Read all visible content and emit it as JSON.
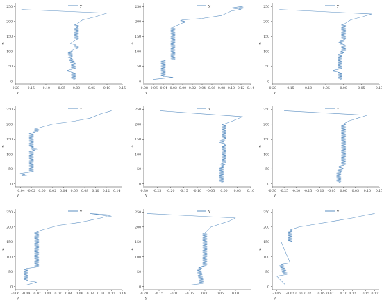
{
  "colors": {
    "line": "#5b8fc2",
    "axis": "#333333"
  },
  "chart_data": [
    {
      "type": "line",
      "xlabel": "y",
      "ylabel": "z",
      "xlim": [
        -0.2,
        0.15
      ],
      "ylim": [
        -10,
        260
      ],
      "xticks": [
        "-0.20",
        "-0.15",
        "-0.10",
        "-0.05",
        "0.00",
        "0.05",
        "0.10",
        "0.15"
      ],
      "yticks": [
        "0",
        "50",
        "100",
        "150",
        "200",
        "250"
      ],
      "legend": "y",
      "series": [
        {
          "name": "y",
          "x": [
            -0.01,
            -0.01,
            -0.03,
            -0.01,
            -0.01,
            -0.02,
            -0.02,
            -0.02,
            0.0,
            0.0,
            -0.02,
            0.0,
            0.0,
            0.0,
            0.02,
            0.06,
            0.1,
            -0.18
          ],
          "y": [
            5,
            30,
            35,
            40,
            60,
            75,
            80,
            100,
            110,
            120,
            125,
            140,
            180,
            190,
            205,
            215,
            228,
            240
          ]
        }
      ]
    },
    {
      "type": "line",
      "xlabel": "y",
      "ylabel": "z",
      "xlim": [
        -0.08,
        0.14
      ],
      "ylim": [
        -10,
        260
      ],
      "xticks": [
        "-0.08",
        "-0.06",
        "-0.04",
        "-0.02",
        "0.00",
        "0.02",
        "0.04",
        "0.06",
        "0.08",
        "0.10",
        "0.12",
        "0.14"
      ],
      "yticks": [
        "0",
        "50",
        "100",
        "150",
        "200",
        "250"
      ],
      "legend": "y",
      "series": [
        {
          "name": "y",
          "x": [
            -0.06,
            -0.02,
            -0.04,
            -0.04,
            -0.02,
            -0.02,
            0.0,
            0.0,
            0.04,
            0.08,
            0.1,
            0.12,
            0.1,
            0.12,
            0.12
          ],
          "y": [
            5,
            12,
            15,
            70,
            70,
            180,
            195,
            205,
            210,
            220,
            235,
            240,
            245,
            250,
            240
          ]
        }
      ]
    },
    {
      "type": "line",
      "xlabel": "y",
      "ylabel": "z",
      "xlim": [
        -0.2,
        0.1
      ],
      "ylim": [
        -10,
        260
      ],
      "xticks": [
        "-0.20",
        "-0.15",
        "-0.10",
        "-0.05",
        "0.00",
        "0.05",
        "0.10"
      ],
      "yticks": [
        "0",
        "50",
        "100",
        "150",
        "200",
        "250"
      ],
      "legend": "y",
      "series": [
        {
          "name": "y",
          "x": [
            -0.01,
            -0.01,
            -0.03,
            -0.01,
            -0.01,
            0.0,
            0.0,
            -0.01,
            0.0,
            0.0,
            0.02,
            0.05,
            0.08,
            -0.18
          ],
          "y": [
            5,
            30,
            35,
            40,
            90,
            100,
            120,
            125,
            140,
            190,
            205,
            215,
            225,
            240
          ]
        }
      ]
    },
    {
      "type": "line",
      "xlabel": "y",
      "ylabel": "z",
      "xlim": [
        -0.05,
        0.15
      ],
      "ylim": [
        -10,
        260
      ],
      "xticks": [
        "-0.04",
        "-0.02",
        "0.00",
        "0.02",
        "0.04",
        "0.06",
        "0.08",
        "0.10",
        "0.12",
        "0.14"
      ],
      "yticks": [
        "0",
        "50",
        "100",
        "150",
        "200",
        "250"
      ],
      "legend": "y",
      "series": [
        {
          "name": "y",
          "x": [
            -0.03,
            -0.04,
            -0.02,
            -0.02,
            -0.01,
            -0.02,
            -0.02,
            -0.01,
            -0.01,
            0.02,
            0.06,
            0.09,
            0.11,
            0.13
          ],
          "y": [
            25,
            35,
            40,
            110,
            118,
            120,
            170,
            175,
            185,
            200,
            210,
            220,
            235,
            245
          ]
        }
      ]
    },
    {
      "type": "line",
      "xlabel": "y",
      "ylabel": "z",
      "xlim": [
        -0.3,
        0.1
      ],
      "ylim": [
        -10,
        260
      ],
      "xticks": [
        "-0.30",
        "-0.25",
        "-0.20",
        "-0.15",
        "-0.10",
        "-0.05",
        "0.00",
        "0.05",
        "0.10"
      ],
      "yticks": [
        "0",
        "50",
        "100",
        "150",
        "200",
        "250"
      ],
      "legend": "y",
      "series": [
        {
          "name": "y",
          "x": [
            -0.01,
            -0.01,
            0.0,
            0.0,
            -0.01,
            0.0,
            0.0,
            0.03,
            0.07,
            -0.24
          ],
          "y": [
            5,
            60,
            70,
            130,
            140,
            150,
            200,
            210,
            225,
            245
          ]
        }
      ]
    },
    {
      "type": "line",
      "xlabel": "y",
      "ylabel": "z",
      "xlim": [
        -0.3,
        0.15
      ],
      "ylim": [
        -10,
        260
      ],
      "xticks": [
        "-0.30",
        "-0.25",
        "-0.20",
        "-0.15",
        "-0.10",
        "-0.05",
        "0.00",
        "0.05",
        "0.10",
        "0.15"
      ],
      "yticks": [
        "0",
        "50",
        "100",
        "150",
        "200",
        "250"
      ],
      "legend": "y",
      "series": [
        {
          "name": "y",
          "x": [
            -0.02,
            -0.02,
            -0.01,
            -0.01,
            0.0,
            0.0,
            0.02,
            0.06,
            0.1,
            -0.25
          ],
          "y": [
            5,
            40,
            50,
            60,
            65,
            200,
            210,
            220,
            230,
            245
          ]
        }
      ]
    },
    {
      "type": "line",
      "xlabel": "y",
      "ylabel": "z",
      "xlim": [
        -0.06,
        0.14
      ],
      "ylim": [
        -10,
        260
      ],
      "xticks": [
        "-0.06",
        "-0.04",
        "-0.02",
        "0.00",
        "0.02",
        "0.04",
        "0.06",
        "0.08",
        "0.10",
        "0.12",
        "0.14"
      ],
      "yticks": [
        "0",
        "50",
        "100",
        "150",
        "200",
        "250"
      ],
      "legend": "y",
      "series": [
        {
          "name": "y",
          "x": [
            -0.04,
            -0.02,
            -0.04,
            -0.04,
            -0.02,
            -0.02,
            0.02,
            0.06,
            0.1,
            0.12,
            0.08,
            0.12
          ],
          "y": [
            5,
            15,
            20,
            60,
            65,
            185,
            205,
            215,
            230,
            240,
            245,
            235
          ]
        }
      ]
    },
    {
      "type": "line",
      "xlabel": "y",
      "ylabel": "z",
      "xlim": [
        -0.2,
        0.15
      ],
      "ylim": [
        -10,
        260
      ],
      "xticks": [
        "-0.20",
        "-0.15",
        "-0.10",
        "-0.05",
        "0.00",
        "0.05",
        "0.10"
      ],
      "yticks": [
        "0",
        "50",
        "100",
        "150",
        "200",
        "250"
      ],
      "legend": "y",
      "series": [
        {
          "name": "y",
          "x": [
            -0.05,
            -0.01,
            -0.02,
            -0.01,
            0.0,
            0.0,
            0.02,
            0.05,
            0.08,
            0.1,
            -0.19
          ],
          "y": [
            5,
            10,
            60,
            65,
            70,
            180,
            200,
            210,
            220,
            230,
            245
          ]
        }
      ]
    },
    {
      "type": "line",
      "xlabel": "y",
      "ylabel": "z",
      "xlim": [
        -0.06,
        0.18
      ],
      "ylim": [
        -10,
        260
      ],
      "xticks": [
        "-0.05",
        "-0.02",
        "0.00",
        "0.02",
        "0.05",
        "0.07",
        "0.10",
        "0.12",
        "0.15",
        "0.17"
      ],
      "yticks": [
        "0",
        "50",
        "100",
        "150",
        "200",
        "250"
      ],
      "legend": "y",
      "series": [
        {
          "name": "y",
          "x": [
            -0.03,
            -0.05,
            -0.03,
            -0.04,
            -0.02,
            -0.04,
            -0.02,
            -0.02,
            0.0,
            0.04,
            0.08,
            0.12,
            0.15,
            0.17
          ],
          "y": [
            5,
            35,
            40,
            75,
            80,
            150,
            150,
            190,
            200,
            210,
            220,
            230,
            240,
            245
          ]
        }
      ]
    }
  ]
}
